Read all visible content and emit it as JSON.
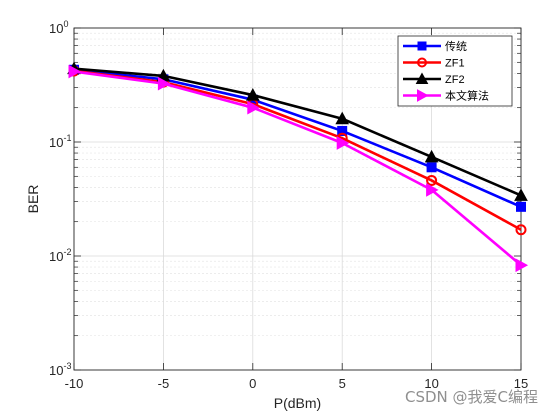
{
  "chart_data": {
    "type": "line",
    "x": [
      -10,
      -5,
      0,
      5,
      10,
      15
    ],
    "xlim": [
      -10,
      15
    ],
    "xticks": [
      -10,
      -5,
      0,
      5,
      10,
      15
    ],
    "xlabel": "P(dBm)",
    "ylabel": "BER",
    "y_scale": "log",
    "ylim": [
      0.001,
      1
    ],
    "yticks": [
      {
        "base": "10",
        "exp": "0"
      },
      {
        "base": "10",
        "exp": "-1"
      },
      {
        "base": "10",
        "exp": "-2"
      },
      {
        "base": "10",
        "exp": "-3"
      }
    ],
    "grid": true,
    "legend_position": "top-right",
    "series": [
      {
        "name": "传统",
        "color": "#0000ff",
        "marker": "square",
        "values": [
          0.43,
          0.355,
          0.235,
          0.125,
          0.06,
          0.027
        ]
      },
      {
        "name": "ZF1",
        "color": "#ff0000",
        "marker": "circle",
        "values": [
          0.42,
          0.335,
          0.215,
          0.108,
          0.046,
          0.017
        ]
      },
      {
        "name": "ZF2",
        "color": "#000000",
        "marker": "triangle-up",
        "values": [
          0.44,
          0.38,
          0.258,
          0.16,
          0.074,
          0.034
        ]
      },
      {
        "name": "本文算法",
        "color": "#ff00ff",
        "marker": "triangle-right",
        "values": [
          0.415,
          0.325,
          0.2,
          0.098,
          0.038,
          0.0083
        ]
      }
    ]
  },
  "watermark": "CSDN @我爱C编程"
}
